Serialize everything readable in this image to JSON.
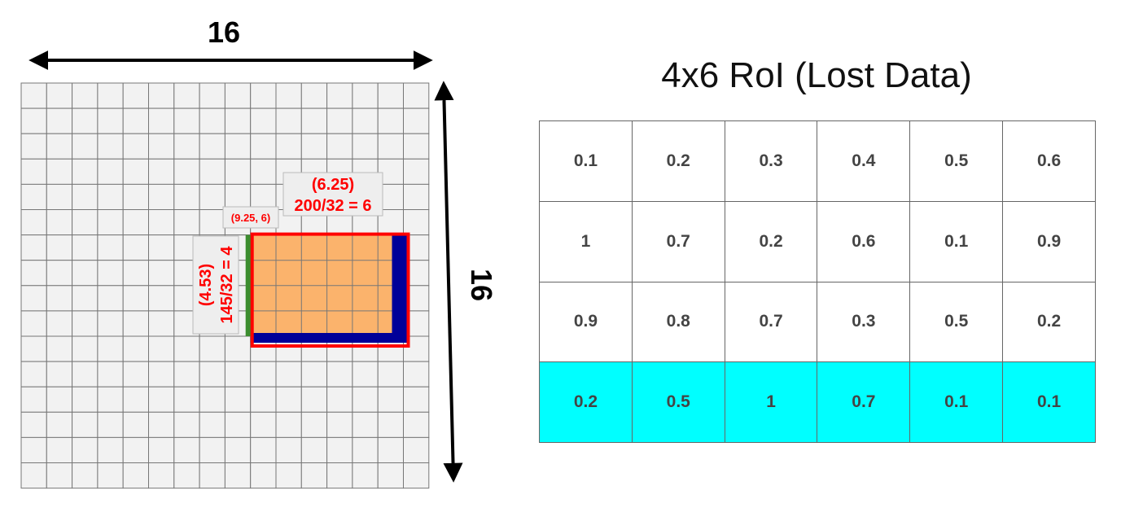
{
  "left_diagram": {
    "grid_size": 16,
    "width_label": "16",
    "height_label": "16",
    "top_box": {
      "line1": "(6.25)",
      "line2": "200/32 = 6"
    },
    "corner_box": {
      "text": "(9.25, 6)"
    },
    "side_box": {
      "line1": "(4.53)",
      "line2": "145/32 = 4"
    },
    "roi_cells": {
      "col_start": 9,
      "row_start": 6,
      "cols": 6,
      "rows": 4
    },
    "colors": {
      "grid_fill": "#f2f2f2",
      "grid_line": "#777777",
      "roi_fill": "#fbb36c",
      "roi_border": "#ff0000",
      "lost_strip": "#000099",
      "left_strip": "#3c8d2f",
      "annotation_text": "#ff0000"
    }
  },
  "table": {
    "title": "4x6 RoI (Lost Data)",
    "rows": [
      [
        "0.1",
        "0.2",
        "0.3",
        "0.4",
        "0.5",
        "0.6"
      ],
      [
        "1",
        "0.7",
        "0.2",
        "0.6",
        "0.1",
        "0.9"
      ],
      [
        "0.9",
        "0.8",
        "0.7",
        "0.3",
        "0.5",
        "0.2"
      ],
      [
        "0.2",
        "0.5",
        "1",
        "0.7",
        "0.1",
        "0.1"
      ]
    ],
    "highlighted_row": 3,
    "colors": {
      "highlight": "#00ffff",
      "text": "#444444",
      "border": "#666666"
    }
  }
}
